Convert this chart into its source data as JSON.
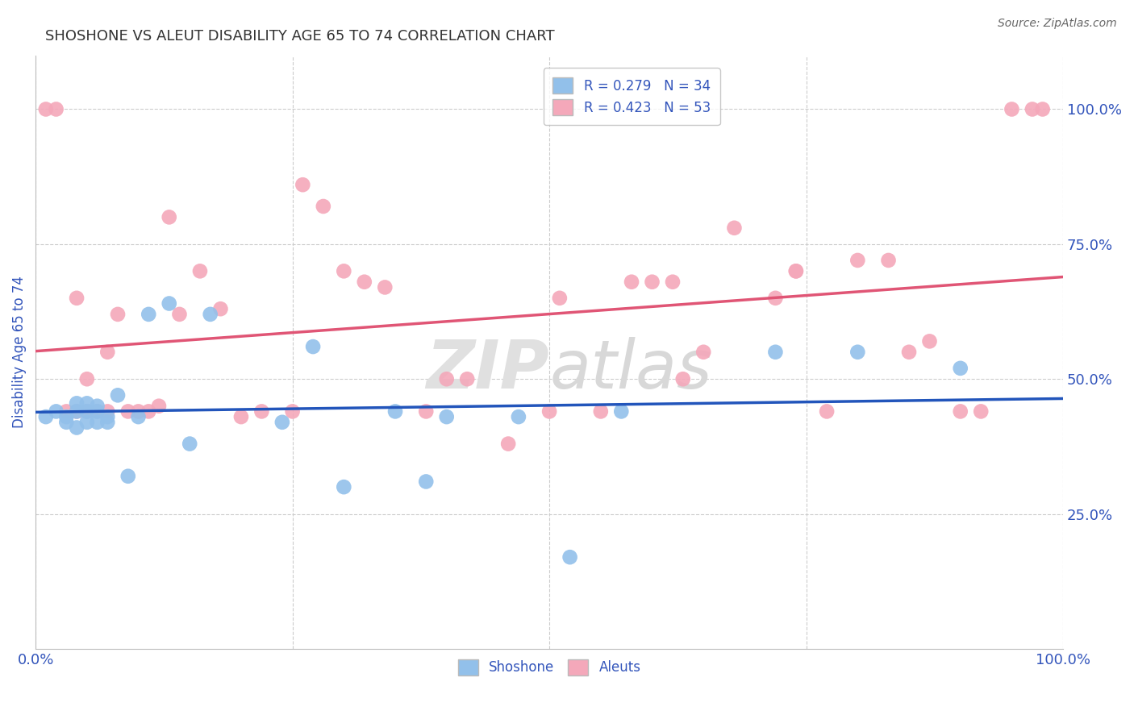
{
  "title": "SHOSHONE VS ALEUT DISABILITY AGE 65 TO 74 CORRELATION CHART",
  "source": "Source: ZipAtlas.com",
  "ylabel": "Disability Age 65 to 74",
  "xlim": [
    0.0,
    1.0
  ],
  "ylim": [
    0.0,
    1.1
  ],
  "xticks": [
    0.0,
    0.25,
    0.5,
    0.75,
    1.0
  ],
  "yticks": [
    0.25,
    0.5,
    0.75,
    1.0
  ],
  "xtick_labels": [
    "0.0%",
    "",
    "",
    "",
    "100.0%"
  ],
  "ytick_labels": [
    "25.0%",
    "50.0%",
    "75.0%",
    "100.0%"
  ],
  "shoshone_color": "#92C0EA",
  "aleut_color": "#F4A8BA",
  "shoshone_line_color": "#2255BB",
  "aleut_line_color": "#E05575",
  "shoshone_R": 0.279,
  "shoshone_N": 34,
  "aleut_R": 0.423,
  "aleut_N": 53,
  "shoshone_x": [
    0.01,
    0.02,
    0.03,
    0.03,
    0.04,
    0.04,
    0.04,
    0.05,
    0.05,
    0.05,
    0.06,
    0.06,
    0.06,
    0.07,
    0.07,
    0.08,
    0.09,
    0.1,
    0.11,
    0.13,
    0.15,
    0.17,
    0.24,
    0.27,
    0.3,
    0.35,
    0.38,
    0.4,
    0.47,
    0.52,
    0.57,
    0.72,
    0.8,
    0.9
  ],
  "shoshone_y": [
    0.43,
    0.44,
    0.43,
    0.42,
    0.455,
    0.44,
    0.41,
    0.455,
    0.44,
    0.42,
    0.45,
    0.44,
    0.42,
    0.43,
    0.42,
    0.47,
    0.32,
    0.43,
    0.62,
    0.64,
    0.38,
    0.62,
    0.42,
    0.56,
    0.3,
    0.44,
    0.31,
    0.43,
    0.43,
    0.17,
    0.44,
    0.55,
    0.55,
    0.52
  ],
  "aleut_x": [
    0.01,
    0.02,
    0.03,
    0.04,
    0.04,
    0.05,
    0.05,
    0.06,
    0.07,
    0.07,
    0.08,
    0.09,
    0.1,
    0.11,
    0.12,
    0.13,
    0.14,
    0.16,
    0.18,
    0.2,
    0.22,
    0.25,
    0.26,
    0.28,
    0.3,
    0.32,
    0.34,
    0.38,
    0.4,
    0.42,
    0.46,
    0.5,
    0.51,
    0.55,
    0.58,
    0.6,
    0.62,
    0.63,
    0.65,
    0.68,
    0.72,
    0.74,
    0.74,
    0.77,
    0.8,
    0.83,
    0.85,
    0.87,
    0.9,
    0.92,
    0.95,
    0.97,
    0.98
  ],
  "aleut_y": [
    1.0,
    1.0,
    0.44,
    0.44,
    0.65,
    0.44,
    0.5,
    0.44,
    0.55,
    0.44,
    0.62,
    0.44,
    0.44,
    0.44,
    0.45,
    0.8,
    0.62,
    0.7,
    0.63,
    0.43,
    0.44,
    0.44,
    0.86,
    0.82,
    0.7,
    0.68,
    0.67,
    0.44,
    0.5,
    0.5,
    0.38,
    0.44,
    0.65,
    0.44,
    0.68,
    0.68,
    0.68,
    0.5,
    0.55,
    0.78,
    0.65,
    0.7,
    0.7,
    0.44,
    0.72,
    0.72,
    0.55,
    0.57,
    0.44,
    0.44,
    1.0,
    1.0,
    1.0
  ],
  "background_color": "#FFFFFF",
  "grid_color": "#CCCCCC",
  "title_color": "#333333",
  "axis_label_color": "#3355BB",
  "watermark_color": "#E0E0E0",
  "watermark_fontsize": 60
}
